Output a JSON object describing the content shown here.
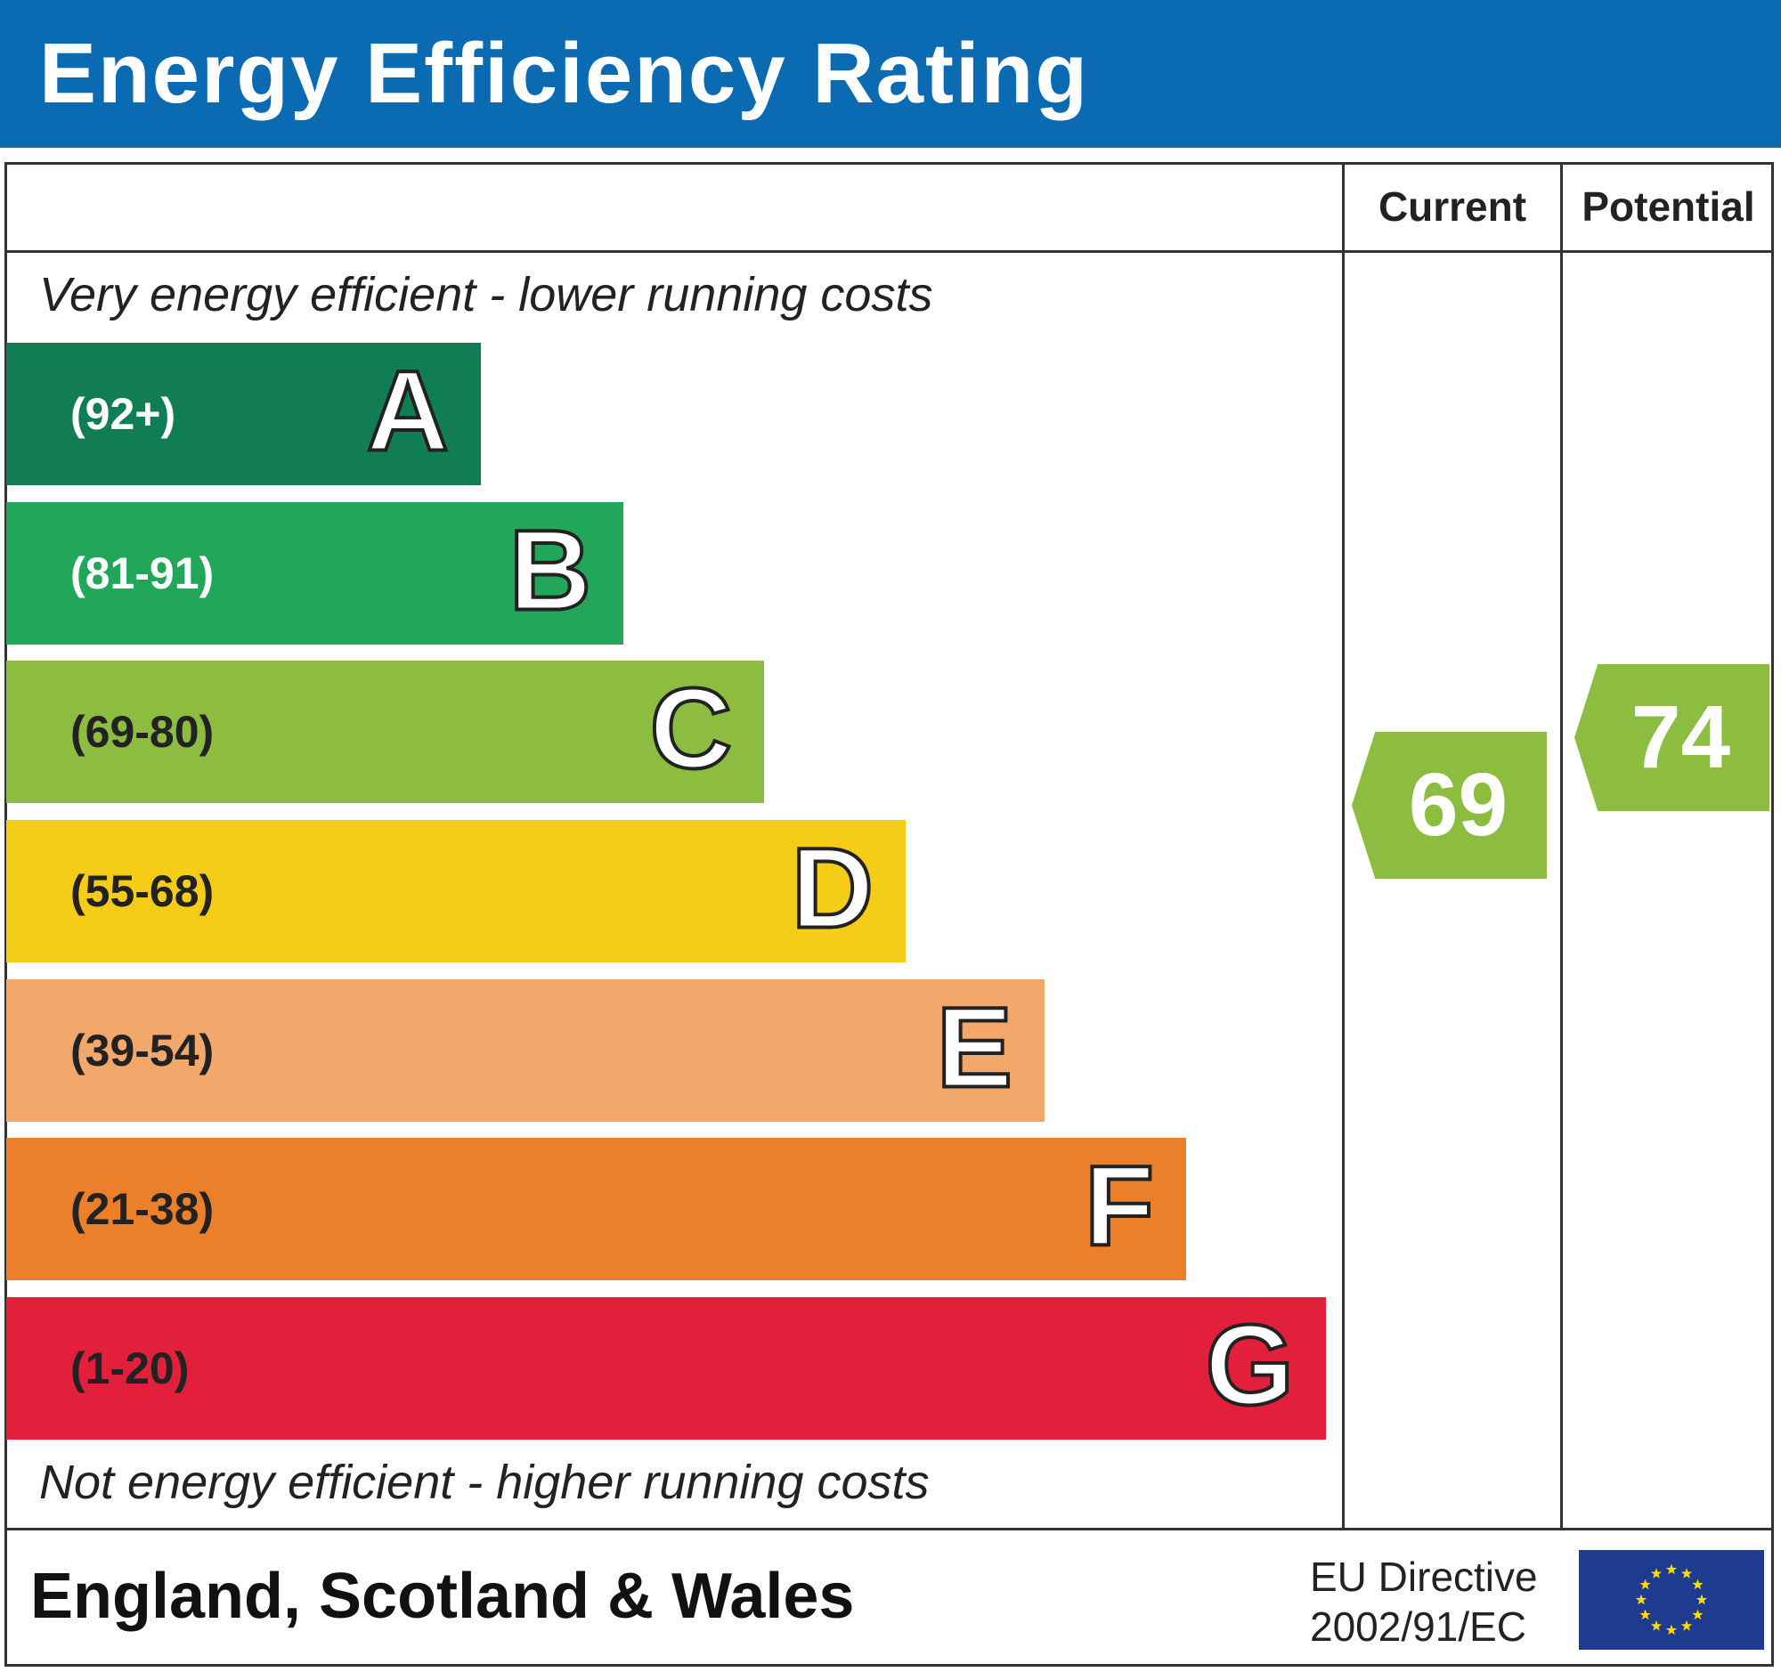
{
  "title": "Energy Efficiency Rating",
  "columns": {
    "current": "Current",
    "potential": "Potential"
  },
  "top_note": "Very energy efficient - lower running costs",
  "bottom_note": "Not energy efficient - higher running costs",
  "footer": {
    "region": "England, Scotland & Wales",
    "directive_line1": "EU Directive",
    "directive_line2": "2002/91/EC",
    "flag_icon": "eu-flag-icon"
  },
  "colors": {
    "header": "#0a6bb3"
  },
  "chart_data": {
    "type": "bar",
    "title": "Energy Efficiency Rating",
    "bands": [
      {
        "letter": "A",
        "range": "(92+)",
        "color": "#107d55",
        "text_color": "#ffffff"
      },
      {
        "letter": "B",
        "range": "(81-91)",
        "color": "#22a65a",
        "text_color": "#ffffff"
      },
      {
        "letter": "C",
        "range": "(69-80)",
        "color": "#8dbd40",
        "text_color": "#222222"
      },
      {
        "letter": "D",
        "range": "(55-68)",
        "color": "#f5cd18",
        "text_color": "#222222"
      },
      {
        "letter": "E",
        "range": "(39-54)",
        "color": "#f2a86b",
        "text_color": "#222222"
      },
      {
        "letter": "F",
        "range": "(21-38)",
        "color": "#ec7f2a",
        "text_color": "#222222"
      },
      {
        "letter": "G",
        "range": "(1-20)",
        "color": "#e3203b",
        "text_color": "#222222"
      }
    ],
    "current": {
      "value": 69,
      "band": "C",
      "color": "#8dbd40"
    },
    "potential": {
      "value": 74,
      "band": "C",
      "color": "#8dbd40"
    }
  }
}
